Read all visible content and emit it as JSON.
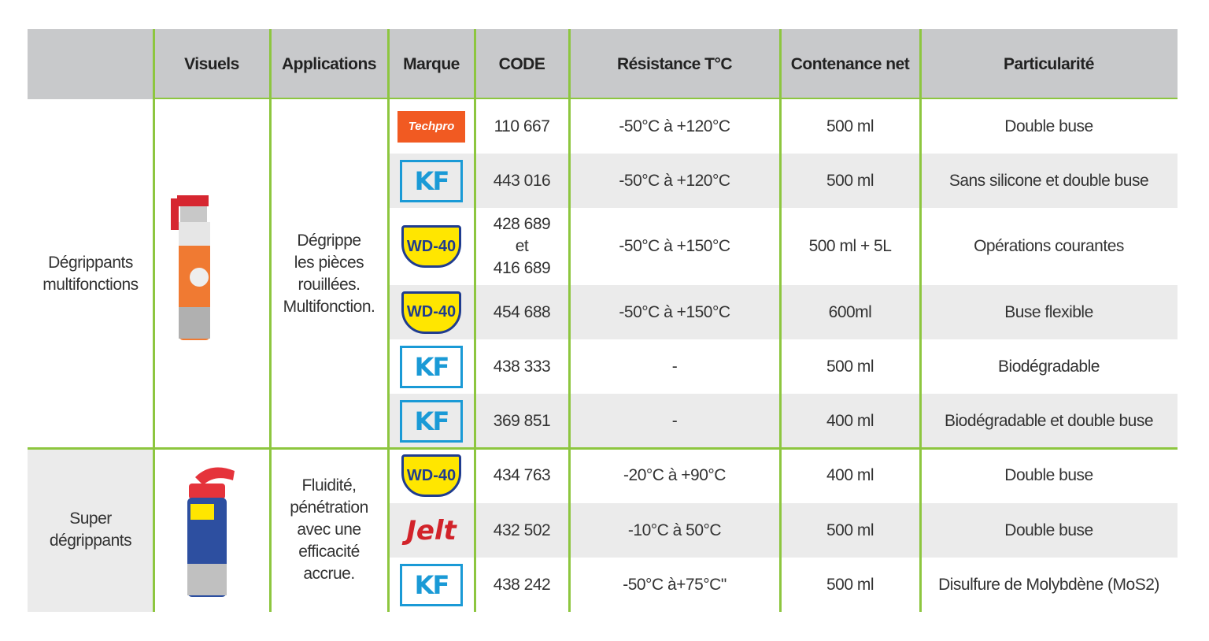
{
  "header": {
    "columns": [
      "Visuels",
      "Applications",
      "Marque",
      "CODE",
      "Résistance T°C",
      "Contenance net",
      "Particularité"
    ]
  },
  "groups": [
    {
      "category": "Dégrippants\nmultifonctions",
      "application": "Dégrippe\nles pièces\nrouillées.\nMultifonction.",
      "rows": [
        {
          "brand": "Techpro",
          "code": "110 667",
          "resistance": "-50°C à +120°C",
          "contenance": "500 ml",
          "particularite": "Double buse"
        },
        {
          "brand": "KF",
          "code": "443 016",
          "resistance": "-50°C à +120°C",
          "contenance": "500 ml",
          "particularite": "Sans silicone et double buse"
        },
        {
          "brand": "WD-40",
          "code": "428 689\net\n416 689",
          "resistance": "-50°C à +150°C",
          "contenance": "500 ml + 5L",
          "particularite": "Opérations courantes"
        },
        {
          "brand": "WD-40",
          "code": "454 688",
          "resistance": "-50°C à +150°C",
          "contenance": "600ml",
          "particularite": "Buse flexible"
        },
        {
          "brand": "KF",
          "code": "438 333",
          "resistance": "-",
          "contenance": "500 ml",
          "particularite": "Biodégradable"
        },
        {
          "brand": "KF",
          "code": "369 851",
          "resistance": "-",
          "contenance": "400 ml",
          "particularite": "Biodégradable et double buse"
        }
      ]
    },
    {
      "category": "Super\ndégrippants",
      "application": "Fluidité,\npénétration\navec une\nefficacité\naccrue.",
      "rows": [
        {
          "brand": "WD-40",
          "code": "434 763",
          "resistance": "-20°C à +90°C",
          "contenance": "400 ml",
          "particularite": "Double buse"
        },
        {
          "brand": "Jelt",
          "code": "432 502",
          "resistance": "-10°C à 50°C",
          "contenance": "500 ml",
          "particularite": "Double buse"
        },
        {
          "brand": "KF",
          "code": "438 242",
          "resistance": "-50°C à+75°C\"",
          "contenance": "500 ml",
          "particularite": "Disulfure de Molybdène (MoS2)"
        }
      ]
    }
  ]
}
